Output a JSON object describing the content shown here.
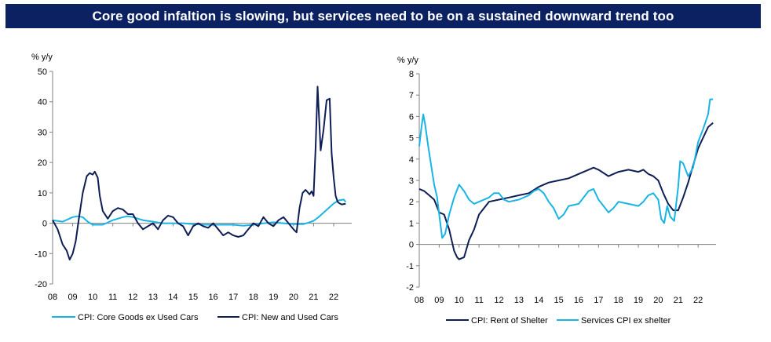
{
  "title": "Core good infaltion is slowing, but services need to be on a sustained downward trend too",
  "colors": {
    "banner": "#0b2161",
    "dark": "#0f1f55",
    "light": "#19b4e6"
  },
  "chart_data": [
    {
      "type": "line",
      "unit_label": "% y/y",
      "ylim": [
        -20,
        50
      ],
      "yticks": [
        -20,
        -10,
        0,
        10,
        20,
        30,
        40,
        50
      ],
      "xlim": [
        2008,
        2022.9
      ],
      "xtick_labels": [
        "08",
        "09",
        "10",
        "11",
        "12",
        "13",
        "14",
        "15",
        "16",
        "17",
        "18",
        "19",
        "20",
        "21",
        "22"
      ],
      "series": [
        {
          "name": "CPI: Core Goods ex Used Cars",
          "color": "#19b4e6",
          "x": [
            2008.0,
            2008.5,
            2009.0,
            2009.25,
            2009.5,
            2009.75,
            2010.0,
            2010.5,
            2011.0,
            2011.5,
            2011.75,
            2012.0,
            2012.5,
            2013.0,
            2013.5,
            2014.0,
            2014.5,
            2015.0,
            2015.5,
            2016.0,
            2016.5,
            2017.0,
            2017.5,
            2018.0,
            2018.5,
            2019.0,
            2019.5,
            2020.0,
            2020.5,
            2020.75,
            2021.0,
            2021.25,
            2021.5,
            2021.75,
            2022.0,
            2022.25,
            2022.5,
            2022.6
          ],
          "y": [
            1,
            0.5,
            2,
            2.3,
            2,
            0.5,
            -0.5,
            -0.5,
            1,
            2,
            2.3,
            2,
            1,
            0.5,
            0,
            0,
            0,
            -0.3,
            -0.5,
            -0.5,
            -0.5,
            -0.5,
            -0.8,
            -0.5,
            0,
            0.3,
            0,
            -0.3,
            -0.3,
            0.2,
            0.8,
            2,
            3.5,
            5,
            6.5,
            7.5,
            7.8,
            7
          ]
        },
        {
          "name": "CPI: New and Used Cars",
          "color": "#0f1f55",
          "x": [
            2008.0,
            2008.25,
            2008.5,
            2008.7,
            2008.85,
            2009.0,
            2009.15,
            2009.3,
            2009.5,
            2009.7,
            2009.85,
            2010.0,
            2010.1,
            2010.25,
            2010.35,
            2010.5,
            2010.75,
            2011.0,
            2011.25,
            2011.5,
            2011.75,
            2012.0,
            2012.25,
            2012.5,
            2012.75,
            2013.0,
            2013.25,
            2013.5,
            2013.75,
            2014.0,
            2014.25,
            2014.5,
            2014.75,
            2015.0,
            2015.25,
            2015.5,
            2015.75,
            2016.0,
            2016.25,
            2016.5,
            2016.75,
            2017.0,
            2017.25,
            2017.5,
            2017.75,
            2018.0,
            2018.25,
            2018.5,
            2018.75,
            2019.0,
            2019.25,
            2019.5,
            2019.75,
            2020.0,
            2020.15,
            2020.3,
            2020.45,
            2020.6,
            2020.8,
            2020.9,
            2021.0,
            2021.1,
            2021.2,
            2021.35,
            2021.5,
            2021.65,
            2021.8,
            2021.9,
            2022.0,
            2022.1,
            2022.2,
            2022.3,
            2022.4,
            2022.6
          ],
          "y": [
            1,
            -2,
            -7,
            -9,
            -12,
            -10,
            -6,
            1,
            10,
            15.5,
            16.5,
            16,
            17,
            15,
            9,
            4,
            1.5,
            4,
            5,
            4.5,
            3,
            3,
            0,
            -2,
            -1,
            0,
            -2,
            1,
            2.5,
            2,
            0,
            -1,
            -4,
            -1,
            0,
            -1,
            -1.5,
            0,
            -2,
            -4,
            -3,
            -4,
            -4.5,
            -4,
            -2,
            0,
            -1,
            2,
            0,
            -1,
            1,
            2,
            0,
            -2,
            -3,
            5,
            10,
            11,
            9.5,
            10.5,
            9,
            25,
            45,
            24,
            31,
            40.5,
            41,
            23,
            15,
            9,
            7,
            6.5,
            6.2,
            6.4
          ]
        }
      ]
    },
    {
      "type": "line",
      "unit_label": "% y/y",
      "ylim": [
        -2,
        8
      ],
      "yticks": [
        -2,
        -1,
        0,
        1,
        2,
        3,
        4,
        5,
        6,
        7,
        8
      ],
      "xlim": [
        2008,
        2022.9
      ],
      "xtick_labels": [
        "08",
        "09",
        "10",
        "11",
        "12",
        "13",
        "14",
        "15",
        "16",
        "17",
        "18",
        "19",
        "20",
        "21",
        "22"
      ],
      "series": [
        {
          "name": "CPI: Rent of Shelter",
          "color": "#0f1f55",
          "x": [
            2008.0,
            2008.25,
            2008.5,
            2008.75,
            2009.0,
            2009.25,
            2009.5,
            2009.75,
            2009.9,
            2010.0,
            2010.25,
            2010.5,
            2010.75,
            2011.0,
            2011.5,
            2012.0,
            2012.5,
            2013.0,
            2013.5,
            2014.0,
            2014.5,
            2015.0,
            2015.5,
            2016.0,
            2016.5,
            2016.75,
            2017.0,
            2017.5,
            2018.0,
            2018.5,
            2019.0,
            2019.25,
            2019.5,
            2019.75,
            2020.0,
            2020.25,
            2020.5,
            2020.75,
            2021.0,
            2021.25,
            2021.5,
            2021.75,
            2022.0,
            2022.25,
            2022.5,
            2022.75
          ],
          "y": [
            2.6,
            2.5,
            2.3,
            2.1,
            1.5,
            1.4,
            0.7,
            -0.3,
            -0.6,
            -0.7,
            -0.6,
            0.2,
            0.7,
            1.4,
            2.0,
            2.1,
            2.2,
            2.3,
            2.4,
            2.7,
            2.9,
            3.0,
            3.1,
            3.3,
            3.5,
            3.6,
            3.5,
            3.2,
            3.4,
            3.5,
            3.4,
            3.5,
            3.3,
            3.2,
            3.0,
            2.4,
            1.9,
            1.6,
            1.6,
            2.2,
            2.9,
            3.7,
            4.5,
            5.0,
            5.5,
            5.7
          ]
        },
        {
          "name": "Services CPI ex shelter",
          "color": "#19b4e6",
          "x": [
            2008.0,
            2008.1,
            2008.2,
            2008.3,
            2008.45,
            2008.6,
            2008.75,
            2008.9,
            2009.0,
            2009.15,
            2009.3,
            2009.5,
            2009.75,
            2010.0,
            2010.25,
            2010.5,
            2010.75,
            2011.0,
            2011.5,
            2011.75,
            2012.0,
            2012.25,
            2012.5,
            2013.0,
            2013.5,
            2013.75,
            2014.0,
            2014.25,
            2014.5,
            2014.75,
            2015.0,
            2015.25,
            2015.5,
            2016.0,
            2016.25,
            2016.5,
            2016.75,
            2017.0,
            2017.25,
            2017.5,
            2017.75,
            2018.0,
            2018.5,
            2019.0,
            2019.25,
            2019.5,
            2019.75,
            2020.0,
            2020.15,
            2020.3,
            2020.45,
            2020.6,
            2020.8,
            2021.0,
            2021.1,
            2021.25,
            2021.5,
            2021.75,
            2022.0,
            2022.25,
            2022.5,
            2022.6,
            2022.75
          ],
          "y": [
            4.6,
            5.4,
            6.1,
            5.6,
            4.6,
            3.7,
            2.8,
            2.2,
            1.4,
            0.3,
            0.5,
            1.4,
            2.2,
            2.8,
            2.5,
            2.1,
            1.9,
            2.0,
            2.2,
            2.4,
            2.4,
            2.1,
            2.0,
            2.1,
            2.3,
            2.5,
            2.6,
            2.4,
            2.0,
            1.7,
            1.2,
            1.4,
            1.8,
            1.9,
            2.2,
            2.5,
            2.6,
            2.1,
            1.8,
            1.5,
            1.7,
            2.0,
            1.9,
            1.8,
            2.0,
            2.3,
            2.4,
            2.1,
            1.2,
            1.0,
            1.8,
            1.3,
            1.1,
            2.7,
            3.9,
            3.8,
            3.2,
            3.6,
            4.8,
            5.4,
            6.1,
            6.8,
            6.8
          ]
        }
      ]
    }
  ]
}
